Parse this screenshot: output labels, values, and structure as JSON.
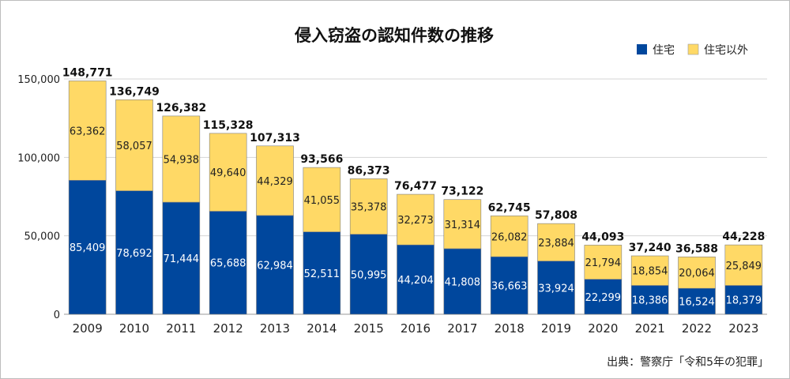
{
  "chart_data": {
    "type": "bar",
    "stacked": true,
    "title": "侵入窃盗の認知件数の推移",
    "categories": [
      "2009",
      "2010",
      "2011",
      "2012",
      "2013",
      "2014",
      "2015",
      "2016",
      "2017",
      "2018",
      "2019",
      "2020",
      "2021",
      "2022",
      "2023"
    ],
    "series": [
      {
        "name": "住宅",
        "color": "#00479d",
        "label_color": "#ffffff",
        "values": [
          85409,
          78692,
          71444,
          65688,
          62984,
          52511,
          50995,
          44204,
          41808,
          36663,
          33924,
          22299,
          18386,
          16524,
          18379
        ],
        "labels": [
          "85,409",
          "78,692",
          "71,444",
          "65,688",
          "62,984",
          "52,511",
          "50,995",
          "44,204",
          "41,808",
          "36,663",
          "33,924",
          "22,299",
          "18,386",
          "16,524",
          "18,379"
        ]
      },
      {
        "name": "住宅以外",
        "color": "#ffd966",
        "label_color": "#222222",
        "values": [
          63362,
          58057,
          54938,
          49640,
          44329,
          41055,
          35378,
          32273,
          31314,
          26082,
          23884,
          21794,
          18854,
          20064,
          25849
        ],
        "labels": [
          "63,362",
          "58,057",
          "54,938",
          "49,640",
          "44,329",
          "41,055",
          "35,378",
          "32,273",
          "31,314",
          "26,082",
          "23,884",
          "21,794",
          "18,854",
          "20,064",
          "25,849"
        ]
      }
    ],
    "totals": [
      148771,
      136749,
      126382,
      115328,
      107313,
      93566,
      86373,
      76477,
      73122,
      62745,
      57808,
      44093,
      37240,
      36588,
      44228
    ],
    "total_labels": [
      "148,771",
      "136,749",
      "126,382",
      "115,328",
      "107,313",
      "93,566",
      "86,373",
      "76,477",
      "73,122",
      "62,745",
      "57,808",
      "44,093",
      "37,240",
      "36,588",
      "44,228"
    ],
    "ylim": [
      0,
      150000
    ],
    "yticks": [
      0,
      50000,
      100000,
      150000
    ],
    "ytick_labels": [
      "0",
      "50,000",
      "100,000",
      "150,000"
    ],
    "grid": true,
    "legend_position": "top-right",
    "xlabel": "",
    "ylabel": ""
  },
  "source": "出典：警察庁「令和5年の犯罪」"
}
